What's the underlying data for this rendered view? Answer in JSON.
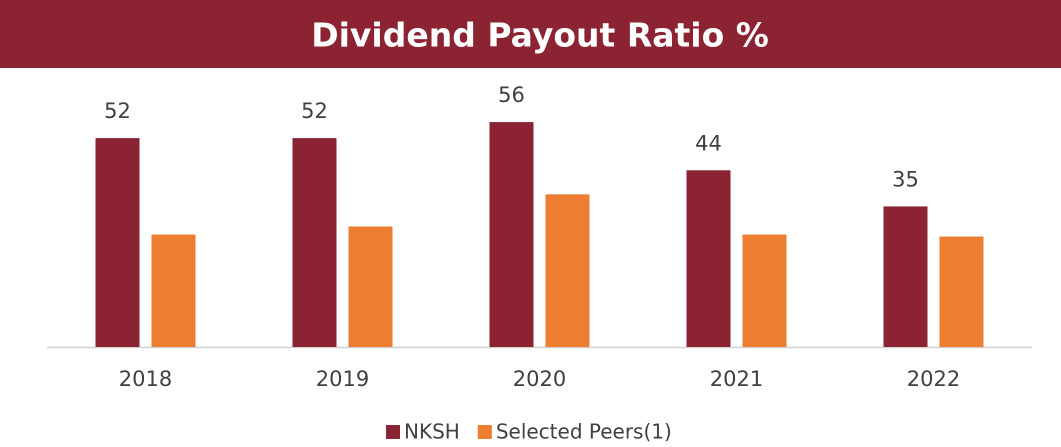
{
  "chart_data": {
    "type": "bar",
    "title": "Dividend Payout Ratio %",
    "categories": [
      "2018",
      "2019",
      "2020",
      "2021",
      "2022"
    ],
    "series": [
      {
        "name": "NKSH",
        "color": "#8b2332",
        "values": [
          52,
          52,
          56,
          44,
          35
        ]
      },
      {
        "name": "Selected Peers(1)",
        "color": "#ed7d31",
        "values": [
          28,
          30,
          38,
          28,
          27.5
        ]
      }
    ],
    "ylim": [
      0,
      60
    ],
    "legend": "bottom"
  }
}
